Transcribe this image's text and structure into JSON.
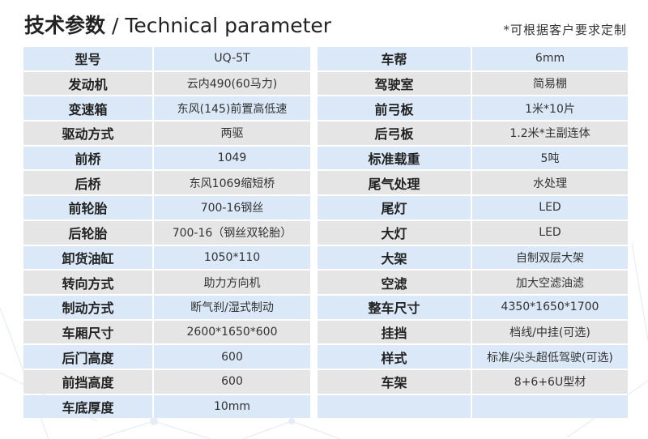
{
  "header": {
    "title_zh": "技术参数",
    "title_sep": " / ",
    "title_en": "Technical parameter",
    "note": "*可根据客户要求定制"
  },
  "left_rows": [
    {
      "label": "型号",
      "value": "UQ-5T"
    },
    {
      "label": "发动机",
      "value": "云内490(60马力)"
    },
    {
      "label": "变速箱",
      "value": "东风(145)前置高低速"
    },
    {
      "label": "驱动方式",
      "value": "两驱"
    },
    {
      "label": "前桥",
      "value": "1049"
    },
    {
      "label": "后桥",
      "value": "东风1069缩短桥"
    },
    {
      "label": "前轮胎",
      "value": "700-16钢丝"
    },
    {
      "label": "后轮胎",
      "value": "700-16（钢丝双轮胎）"
    },
    {
      "label": "卸货油缸",
      "value": "1050*110"
    },
    {
      "label": "转向方式",
      "value": "助力方向机"
    },
    {
      "label": "制动方式",
      "value": "断气刹/湿式制动"
    },
    {
      "label": "车厢尺寸",
      "value": "2600*1650*600"
    },
    {
      "label": "后门高度",
      "value": "600"
    },
    {
      "label": "前挡高度",
      "value": "600"
    },
    {
      "label": "车底厚度",
      "value": "10mm"
    }
  ],
  "right_rows": [
    {
      "label": "车帮",
      "value": "6mm"
    },
    {
      "label": "驾驶室",
      "value": "简易棚"
    },
    {
      "label": "前弓板",
      "value": "1米*10片"
    },
    {
      "label": "后弓板",
      "value": "1.2米*主副连体"
    },
    {
      "label": "标准载重",
      "value": "5吨"
    },
    {
      "label": "尾气处理",
      "value": "水处理"
    },
    {
      "label": "尾灯",
      "value": "LED"
    },
    {
      "label": "大灯",
      "value": "LED"
    },
    {
      "label": "大架",
      "value": "自制双层大架"
    },
    {
      "label": "空滤",
      "value": "加大空滤油滤"
    },
    {
      "label": "整车尺寸",
      "value": "4350*1650*1700"
    },
    {
      "label": "挂挡",
      "value": "档线/中挂(可选)"
    },
    {
      "label": "样式",
      "value": "标准/尖头超低驾驶(可选)"
    },
    {
      "label": "车架",
      "value": "8+6+6U型材"
    },
    {
      "label": "",
      "value": ""
    }
  ],
  "colors": {
    "row_blue": "#dae8f7",
    "row_gray": "#e5e5e5"
  }
}
